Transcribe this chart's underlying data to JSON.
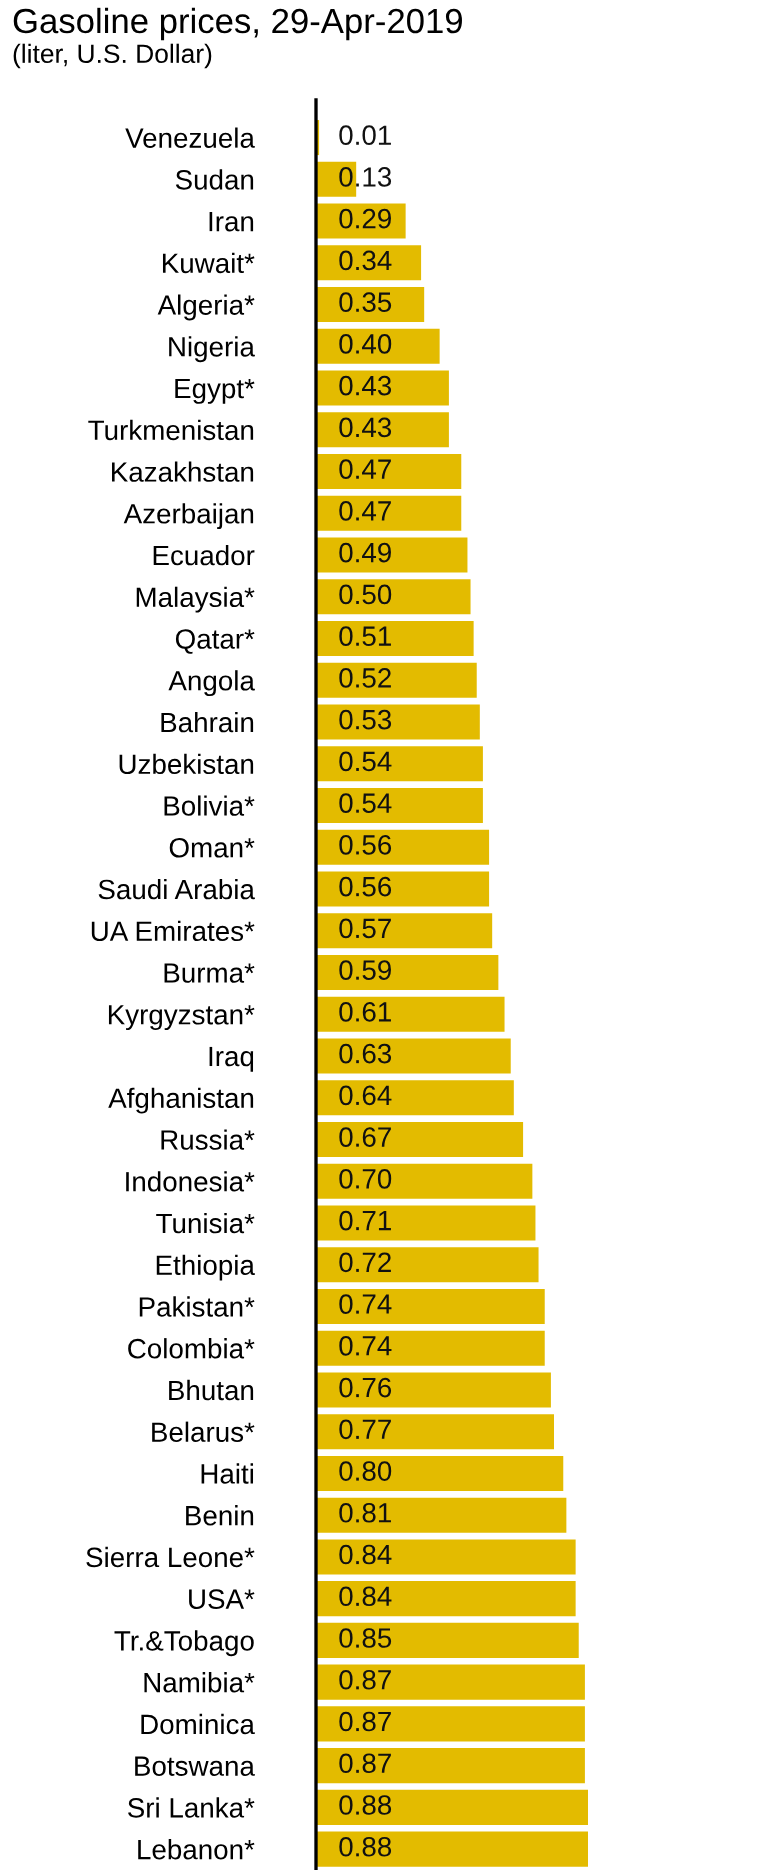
{
  "chart_data": {
    "type": "bar",
    "orientation": "horizontal",
    "title": "Gasoline prices, 29-Apr-2019",
    "subtitle": "(liter, U.S. Dollar)",
    "categories": [
      "Venezuela",
      "Sudan",
      "Iran",
      "Kuwait*",
      "Algeria*",
      "Nigeria",
      "Egypt*",
      "Turkmenistan",
      "Kazakhstan",
      "Azerbaijan",
      "Ecuador",
      "Malaysia*",
      "Qatar*",
      "Angola",
      "Bahrain",
      "Uzbekistan",
      "Bolivia*",
      "Oman*",
      "Saudi Arabia",
      "UA Emirates*",
      "Burma*",
      "Kyrgyzstan*",
      "Iraq",
      "Afghanistan",
      "Russia*",
      "Indonesia*",
      "Tunisia*",
      "Ethiopia",
      "Pakistan*",
      "Colombia*",
      "Bhutan",
      "Belarus*",
      "Haiti",
      "Benin",
      "Sierra Leone*",
      "USA*",
      "Tr.&Tobago",
      "Namibia*",
      "Dominica",
      "Botswana",
      "Sri Lanka*",
      "Lebanon*"
    ],
    "values": [
      0.01,
      0.13,
      0.29,
      0.34,
      0.35,
      0.4,
      0.43,
      0.43,
      0.47,
      0.47,
      0.49,
      0.5,
      0.51,
      0.52,
      0.53,
      0.54,
      0.54,
      0.56,
      0.56,
      0.57,
      0.59,
      0.61,
      0.63,
      0.64,
      0.67,
      0.7,
      0.71,
      0.72,
      0.74,
      0.74,
      0.76,
      0.77,
      0.8,
      0.81,
      0.84,
      0.84,
      0.85,
      0.87,
      0.87,
      0.87,
      0.88,
      0.88
    ],
    "value_labels": [
      "0.01",
      "0.13",
      "0.29",
      "0.34",
      "0.35",
      "0.40",
      "0.43",
      "0.43",
      "0.47",
      "0.47",
      "0.49",
      "0.50",
      "0.51",
      "0.52",
      "0.53",
      "0.54",
      "0.54",
      "0.56",
      "0.56",
      "0.57",
      "0.59",
      "0.61",
      "0.63",
      "0.64",
      "0.67",
      "0.70",
      "0.71",
      "0.72",
      "0.74",
      "0.74",
      "0.76",
      "0.77",
      "0.80",
      "0.81",
      "0.84",
      "0.84",
      "0.85",
      "0.87",
      "0.87",
      "0.87",
      "0.88",
      "0.88"
    ],
    "color": "#e3bb00",
    "grid": false,
    "legend": false
  }
}
